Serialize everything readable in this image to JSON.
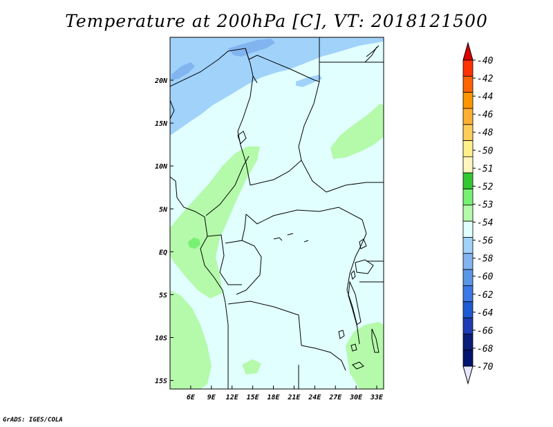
{
  "title": "Temperature at 200hPa [C], VT: 2018121500",
  "footer": "GrADS: IGES/COLA",
  "map": {
    "lon_range": [
      3,
      34
    ],
    "lat_range": [
      -16,
      25
    ],
    "x_ticks": [
      "6E",
      "9E",
      "12E",
      "15E",
      "18E",
      "21E",
      "24E",
      "27E",
      "30E",
      "33E"
    ],
    "x_tick_values": [
      6,
      9,
      12,
      15,
      18,
      21,
      24,
      27,
      30,
      33
    ],
    "y_ticks": [
      "20N",
      "15N",
      "10N",
      "5N",
      "EQ",
      "5S",
      "10S",
      "15S"
    ],
    "y_tick_values": [
      20,
      15,
      10,
      5,
      0,
      -5,
      -10,
      -15
    ],
    "colors": {
      "c_le56": "#a0d2fa",
      "c_le58": "#82b4f0",
      "c_54": "#e1ffff",
      "c_53": "#b4faaa",
      "c_52": "#78f073",
      "border": "#000000"
    }
  },
  "colorbar": {
    "labels": [
      "-40",
      "-42",
      "-44",
      "-46",
      "-48",
      "-50",
      "-51",
      "-52",
      "-53",
      "-54",
      "-56",
      "-58",
      "-60",
      "-62",
      "-64",
      "-66",
      "-68",
      "-70"
    ],
    "top_arrow_color": "#dc0000",
    "bottom_arrow_color": "#e6e6ff",
    "colors": [
      "#ff3200",
      "#ff6400",
      "#ff9600",
      "#ffaf32",
      "#ffcd5a",
      "#fff08c",
      "#fff5be",
      "#32c832",
      "#78f073",
      "#b4faaa",
      "#e1ffff",
      "#a0d2fa",
      "#82b4f0",
      "#5a96e6",
      "#3c78e6",
      "#1e5ad2",
      "#1e3cb4",
      "#0a1e78",
      "#00146e"
    ]
  }
}
